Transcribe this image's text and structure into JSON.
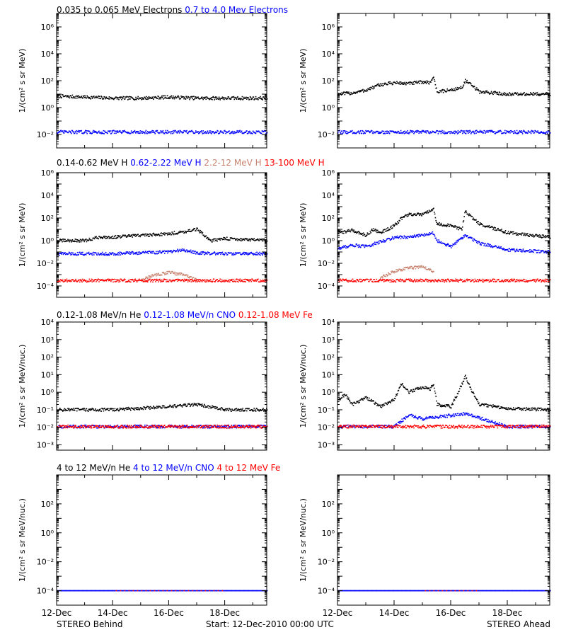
{
  "figure": {
    "row_titles": [
      [
        {
          "text": "0.035 to 0.065 MeV Electrons",
          "color": "#000000"
        },
        {
          "text": "0.7 to 4.0 Mev Electrons",
          "color": "#0000ff"
        }
      ],
      [
        {
          "text": "0.14-0.62 MeV H",
          "color": "#000000"
        },
        {
          "text": "0.62-2.22 MeV H",
          "color": "#0000ff"
        },
        {
          "text": "2.2-12 MeV H",
          "color": "#c8826e"
        },
        {
          "text": "13-100 MeV H",
          "color": "#ff0000"
        }
      ],
      [
        {
          "text": "0.12-1.08 MeV/n He",
          "color": "#000000"
        },
        {
          "text": "0.12-1.08 MeV/n CNO",
          "color": "#0000ff"
        },
        {
          "text": "0.12-1.08 MeV Fe",
          "color": "#ff0000"
        }
      ],
      [
        {
          "text": "4 to 12 MeV/n He",
          "color": "#000000"
        },
        {
          "text": "4 to 12 MeV/n CNO",
          "color": "#0000ff"
        },
        {
          "text": "4 to 12 MeV Fe",
          "color": "#ff0000"
        }
      ]
    ],
    "footer": {
      "left": "STEREO Behind",
      "center": "Start: 12-Dec-2010 00:00 UTC",
      "right": "STEREO Ahead"
    },
    "colors": {
      "black": "#000000",
      "blue": "#0000ff",
      "tan": "#c8826e",
      "red": "#ff0000"
    }
  },
  "chart_data": [
    {
      "type": "scatter",
      "panel": "behind-electrons",
      "ylabel": "1/(cm² s sr MeV)",
      "yscale": "log",
      "ylim": [
        0.001,
        10000000
      ],
      "xlim": [
        "2010-12-12",
        "2010-12-19T12:00"
      ],
      "x_ticks": [
        "12-Dec",
        "14-Dec",
        "16-Dec",
        "18-Dec"
      ],
      "y_ticks": [
        "10⁻²",
        "10⁰",
        "10²",
        "10⁴",
        "10⁶"
      ],
      "series": [
        {
          "name": "0.035 to 0.065 MeV Electrons",
          "color": "#000000",
          "x": [
            "2010-12-12",
            "2010-12-13",
            "2010-12-14",
            "2010-12-15",
            "2010-12-16",
            "2010-12-17",
            "2010-12-18",
            "2010-12-19T12:00"
          ],
          "y": [
            7,
            6,
            5,
            5,
            6,
            5,
            5,
            5
          ]
        },
        {
          "name": "0.7 to 4.0 Mev Electrons",
          "color": "#0000ff",
          "x": [
            "2010-12-12",
            "2010-12-14",
            "2010-12-16",
            "2010-12-18",
            "2010-12-19T12:00"
          ],
          "y": [
            0.015,
            0.015,
            0.015,
            0.015,
            0.015
          ]
        }
      ]
    },
    {
      "type": "scatter",
      "panel": "ahead-electrons",
      "ylabel": "1/(cm² s sr MeV)",
      "yscale": "log",
      "ylim": [
        0.001,
        10000000
      ],
      "xlim": [
        "2010-12-12",
        "2010-12-19T12:00"
      ],
      "x_ticks": [
        "12-Dec",
        "14-Dec",
        "16-Dec",
        "18-Dec"
      ],
      "y_ticks": [
        "10⁻²",
        "10⁰",
        "10²",
        "10⁴",
        "10⁶"
      ],
      "series": [
        {
          "name": "0.035 to 0.065 MeV Electrons",
          "color": "#000000",
          "x": [
            "2010-12-12",
            "2010-12-12T12:00",
            "2010-12-13",
            "2010-12-13T12:00",
            "2010-12-14",
            "2010-12-14T12:00",
            "2010-12-15",
            "2010-12-15T06:00",
            "2010-12-15T09:00",
            "2010-12-15T12:00",
            "2010-12-16",
            "2010-12-16T09:00",
            "2010-12-16T12:00",
            "2010-12-16T18:00",
            "2010-12-17",
            "2010-12-18",
            "2010-12-19T12:00"
          ],
          "y": [
            10,
            12,
            20,
            50,
            70,
            60,
            80,
            70,
            200,
            15,
            20,
            30,
            100,
            40,
            15,
            10,
            10
          ]
        },
        {
          "name": "0.7 to 4.0 Mev Electrons",
          "color": "#0000ff",
          "x": [
            "2010-12-12",
            "2010-12-14",
            "2010-12-16",
            "2010-12-18",
            "2010-12-19T12:00"
          ],
          "y": [
            0.015,
            0.015,
            0.015,
            0.015,
            0.015
          ]
        }
      ]
    },
    {
      "type": "scatter",
      "panel": "behind-protons",
      "ylabel": "1/(cm² s sr MeV)",
      "yscale": "log",
      "ylim": [
        1e-05,
        1000000
      ],
      "xlim": [
        "2010-12-12",
        "2010-12-19T12:00"
      ],
      "x_ticks": [
        "12-Dec",
        "14-Dec",
        "16-Dec",
        "18-Dec"
      ],
      "y_ticks": [
        "10⁻⁴",
        "10⁻²",
        "10⁰",
        "10²",
        "10⁴",
        "10⁶"
      ],
      "series": [
        {
          "name": "0.14-0.62 MeV H",
          "color": "#000000",
          "x": [
            "2010-12-12",
            "2010-12-13",
            "2010-12-13T12:00",
            "2010-12-14",
            "2010-12-15",
            "2010-12-16",
            "2010-12-16T12:00",
            "2010-12-17",
            "2010-12-17T06:00",
            "2010-12-17T12:00",
            "2010-12-18",
            "2010-12-19T12:00"
          ],
          "y": [
            1,
            1,
            2,
            2,
            3,
            4,
            6,
            10,
            3,
            1,
            1.5,
            1
          ]
        },
        {
          "name": "0.62-2.22 MeV H",
          "color": "#0000ff",
          "x": [
            "2010-12-12",
            "2010-12-14",
            "2010-12-16",
            "2010-12-16T12:00",
            "2010-12-17",
            "2010-12-18",
            "2010-12-19T12:00"
          ],
          "y": [
            0.07,
            0.07,
            0.1,
            0.15,
            0.08,
            0.07,
            0.07
          ]
        },
        {
          "name": "2.2-12 MeV H",
          "color": "#c8826e",
          "x": [
            "2010-12-15",
            "2010-12-15T12:00",
            "2010-12-16",
            "2010-12-16T12:00",
            "2010-12-17"
          ],
          "y": [
            0.0003,
            0.001,
            0.0015,
            0.001,
            0.0003
          ]
        },
        {
          "name": "13-100 MeV H",
          "color": "#ff0000",
          "x": [
            "2010-12-12",
            "2010-12-14",
            "2010-12-16",
            "2010-12-18",
            "2010-12-19T12:00"
          ],
          "y": [
            0.0003,
            0.0003,
            0.0003,
            0.0003,
            0.0003
          ]
        }
      ]
    },
    {
      "type": "scatter",
      "panel": "ahead-protons",
      "ylabel": "1/(cm² s sr MeV)",
      "yscale": "log",
      "ylim": [
        1e-05,
        1000000
      ],
      "xlim": [
        "2010-12-12",
        "2010-12-19T12:00"
      ],
      "x_ticks": [
        "12-Dec",
        "14-Dec",
        "16-Dec",
        "18-Dec"
      ],
      "y_ticks": [
        "10⁻⁴",
        "10⁻²",
        "10⁰",
        "10²",
        "10⁴",
        "10⁶"
      ],
      "series": [
        {
          "name": "0.14-0.62 MeV H",
          "color": "#000000",
          "x": [
            "2010-12-12",
            "2010-12-12T12:00",
            "2010-12-13",
            "2010-12-13T06:00",
            "2010-12-13T12:00",
            "2010-12-14",
            "2010-12-14T06:00",
            "2010-12-14T12:00",
            "2010-12-15",
            "2010-12-15T06:00",
            "2010-12-15T09:00",
            "2010-12-15T12:00",
            "2010-12-16",
            "2010-12-16T09:00",
            "2010-12-16T12:00",
            "2010-12-16T18:00",
            "2010-12-17",
            "2010-12-18",
            "2010-12-19T12:00"
          ],
          "y": [
            5,
            8,
            3,
            10,
            5,
            20,
            100,
            200,
            200,
            400,
            600,
            30,
            20,
            10,
            400,
            100,
            30,
            5,
            2
          ]
        },
        {
          "name": "0.62-2.22 MeV H",
          "color": "#0000ff",
          "x": [
            "2010-12-12",
            "2010-12-12T12:00",
            "2010-12-13",
            "2010-12-14",
            "2010-12-14T12:00",
            "2010-12-15",
            "2010-12-15T09:00",
            "2010-12-15T12:00",
            "2010-12-16",
            "2010-12-16T12:00",
            "2010-12-17",
            "2010-12-18",
            "2010-12-19T12:00"
          ],
          "y": [
            0.2,
            0.4,
            0.3,
            2,
            2,
            3,
            5,
            1,
            0.3,
            3,
            0.6,
            0.15,
            0.1
          ]
        },
        {
          "name": "2.2-12 MeV H",
          "color": "#c8826e",
          "x": [
            "2010-12-13T12:00",
            "2010-12-14",
            "2010-12-14T12:00",
            "2010-12-15",
            "2010-12-15T09:00"
          ],
          "y": [
            0.0005,
            0.002,
            0.004,
            0.005,
            0.002
          ]
        },
        {
          "name": "13-100 MeV H",
          "color": "#ff0000",
          "x": [
            "2010-12-12",
            "2010-12-14",
            "2010-12-16",
            "2010-12-18",
            "2010-12-19T12:00"
          ],
          "y": [
            0.0003,
            0.0003,
            0.0003,
            0.0003,
            0.0003
          ]
        }
      ]
    },
    {
      "type": "scatter",
      "panel": "behind-heavy-ions",
      "ylabel": "1/(cm² s sr MeV/nuc.)",
      "yscale": "log",
      "ylim": [
        0.0005,
        10000
      ],
      "xlim": [
        "2010-12-12",
        "2010-12-19T12:00"
      ],
      "x_ticks": [
        "12-Dec",
        "14-Dec",
        "16-Dec",
        "18-Dec"
      ],
      "y_ticks": [
        "10⁻³",
        "10⁻²",
        "10⁻¹",
        "10⁰",
        "10¹",
        "10²",
        "10³",
        "10⁴"
      ],
      "series": [
        {
          "name": "0.12-1.08 MeV/n He",
          "color": "#000000",
          "x": [
            "2010-12-12",
            "2010-12-14",
            "2010-12-16",
            "2010-12-17",
            "2010-12-18",
            "2010-12-19T12:00"
          ],
          "y": [
            0.1,
            0.1,
            0.15,
            0.2,
            0.1,
            0.1
          ]
        },
        {
          "name": "0.12-1.08 MeV/n CNO",
          "color": "#0000ff",
          "x": [
            "2010-12-12",
            "2010-12-14",
            "2010-12-16",
            "2010-12-18",
            "2010-12-19T12:00"
          ],
          "y": [
            0.011,
            0.011,
            0.011,
            0.011,
            0.011
          ]
        },
        {
          "name": "0.12-1.08 MeV Fe",
          "color": "#ff0000",
          "x": [
            "2010-12-12",
            "2010-12-14",
            "2010-12-16",
            "2010-12-18",
            "2010-12-19T12:00"
          ],
          "y": [
            0.011,
            0.011,
            0.011,
            0.011,
            0.011
          ]
        }
      ]
    },
    {
      "type": "scatter",
      "panel": "ahead-heavy-ions",
      "ylabel": "1/(cm² s sr MeV/nuc.)",
      "yscale": "log",
      "ylim": [
        0.0005,
        10000
      ],
      "xlim": [
        "2010-12-12",
        "2010-12-19T12:00"
      ],
      "x_ticks": [
        "12-Dec",
        "14-Dec",
        "16-Dec",
        "18-Dec"
      ],
      "y_ticks": [
        "10⁻³",
        "10⁻²",
        "10⁻¹",
        "10⁰",
        "10¹",
        "10²",
        "10³",
        "10⁴"
      ],
      "series": [
        {
          "name": "0.12-1.08 MeV/n He",
          "color": "#000000",
          "x": [
            "2010-12-12",
            "2010-12-12T06:00",
            "2010-12-12T12:00",
            "2010-12-13",
            "2010-12-13T12:00",
            "2010-12-14",
            "2010-12-14T06:00",
            "2010-12-14T12:00",
            "2010-12-15",
            "2010-12-15T06:00",
            "2010-12-15T09:00",
            "2010-12-15T12:00",
            "2010-12-16",
            "2010-12-16T06:00",
            "2010-12-16T12:00",
            "2010-12-16T18:00",
            "2010-12-17",
            "2010-12-18",
            "2010-12-19T12:00"
          ],
          "y": [
            0.3,
            0.8,
            0.2,
            0.5,
            0.15,
            0.4,
            3,
            1,
            2,
            1.5,
            3,
            0.2,
            0.15,
            1,
            8,
            1,
            0.2,
            0.12,
            0.1
          ]
        },
        {
          "name": "0.12-1.08 MeV/n CNO",
          "color": "#0000ff",
          "x": [
            "2010-12-12",
            "2010-12-14",
            "2010-12-14T12:00",
            "2010-12-15",
            "2010-12-16T12:00",
            "2010-12-18",
            "2010-12-19T12:00"
          ],
          "y": [
            0.011,
            0.011,
            0.05,
            0.03,
            0.06,
            0.011,
            0.011
          ]
        },
        {
          "name": "0.12-1.08 MeV Fe",
          "color": "#ff0000",
          "x": [
            "2010-12-12",
            "2010-12-14",
            "2010-12-16",
            "2010-12-18",
            "2010-12-19T12:00"
          ],
          "y": [
            0.011,
            0.011,
            0.011,
            0.011,
            0.011
          ]
        }
      ]
    },
    {
      "type": "scatter",
      "panel": "behind-high-energy-ions",
      "ylabel": "1/(cm² s sr MeV/nuc.)",
      "yscale": "log",
      "ylim": [
        1e-05,
        10000
      ],
      "xlim": [
        "2010-12-12",
        "2010-12-19T12:00"
      ],
      "x_ticks": [
        "12-Dec",
        "14-Dec",
        "16-Dec",
        "18-Dec"
      ],
      "y_ticks": [
        "10⁻⁴",
        "10⁻²",
        "10⁰",
        "10²"
      ],
      "series": [
        {
          "name": "4 to 12 MeV/n He",
          "color": "#000000",
          "x": [
            "2010-12-12",
            "2010-12-14",
            "2010-12-16",
            "2010-12-18",
            "2010-12-19T12:00"
          ],
          "y": [
            0.0001,
            0.0001,
            0.0001,
            0.0001,
            0.0001
          ]
        },
        {
          "name": "4 to 12 MeV/n CNO",
          "color": "#0000ff",
          "x": [
            "2010-12-12",
            "2010-12-14",
            "2010-12-16",
            "2010-12-18",
            "2010-12-19T12:00"
          ],
          "y": [
            0.0001,
            0.0001,
            0.0001,
            0.0001,
            0.0001
          ]
        },
        {
          "name": "4 to 12 MeV Fe",
          "color": "#ff0000",
          "x": [
            "2010-12-14",
            "2010-12-18"
          ],
          "y": [
            0.0001,
            0.0001
          ]
        }
      ]
    },
    {
      "type": "scatter",
      "panel": "ahead-high-energy-ions",
      "ylabel": "1/(cm² s sr MeV/nuc.)",
      "yscale": "log",
      "ylim": [
        1e-05,
        10000
      ],
      "xlim": [
        "2010-12-12",
        "2010-12-19T12:00"
      ],
      "x_ticks": [
        "12-Dec",
        "14-Dec",
        "16-Dec",
        "18-Dec"
      ],
      "y_ticks": [
        "10⁻⁴",
        "10⁻²",
        "10⁰",
        "10²"
      ],
      "series": [
        {
          "name": "4 to 12 MeV/n He",
          "color": "#000000",
          "x": [
            "2010-12-12",
            "2010-12-14",
            "2010-12-16",
            "2010-12-18",
            "2010-12-19T12:00"
          ],
          "y": [
            0.0001,
            0.0001,
            0.0001,
            0.0001,
            0.0001
          ]
        },
        {
          "name": "4 to 12 MeV/n CNO",
          "color": "#0000ff",
          "x": [
            "2010-12-12",
            "2010-12-14",
            "2010-12-16",
            "2010-12-18",
            "2010-12-19T12:00"
          ],
          "y": [
            0.0001,
            0.0001,
            0.0001,
            0.0001,
            0.0001
          ]
        },
        {
          "name": "4 to 12 MeV Fe",
          "color": "#ff0000",
          "x": [
            "2010-12-15",
            "2010-12-17"
          ],
          "y": [
            0.0001,
            0.0001
          ]
        }
      ]
    }
  ]
}
